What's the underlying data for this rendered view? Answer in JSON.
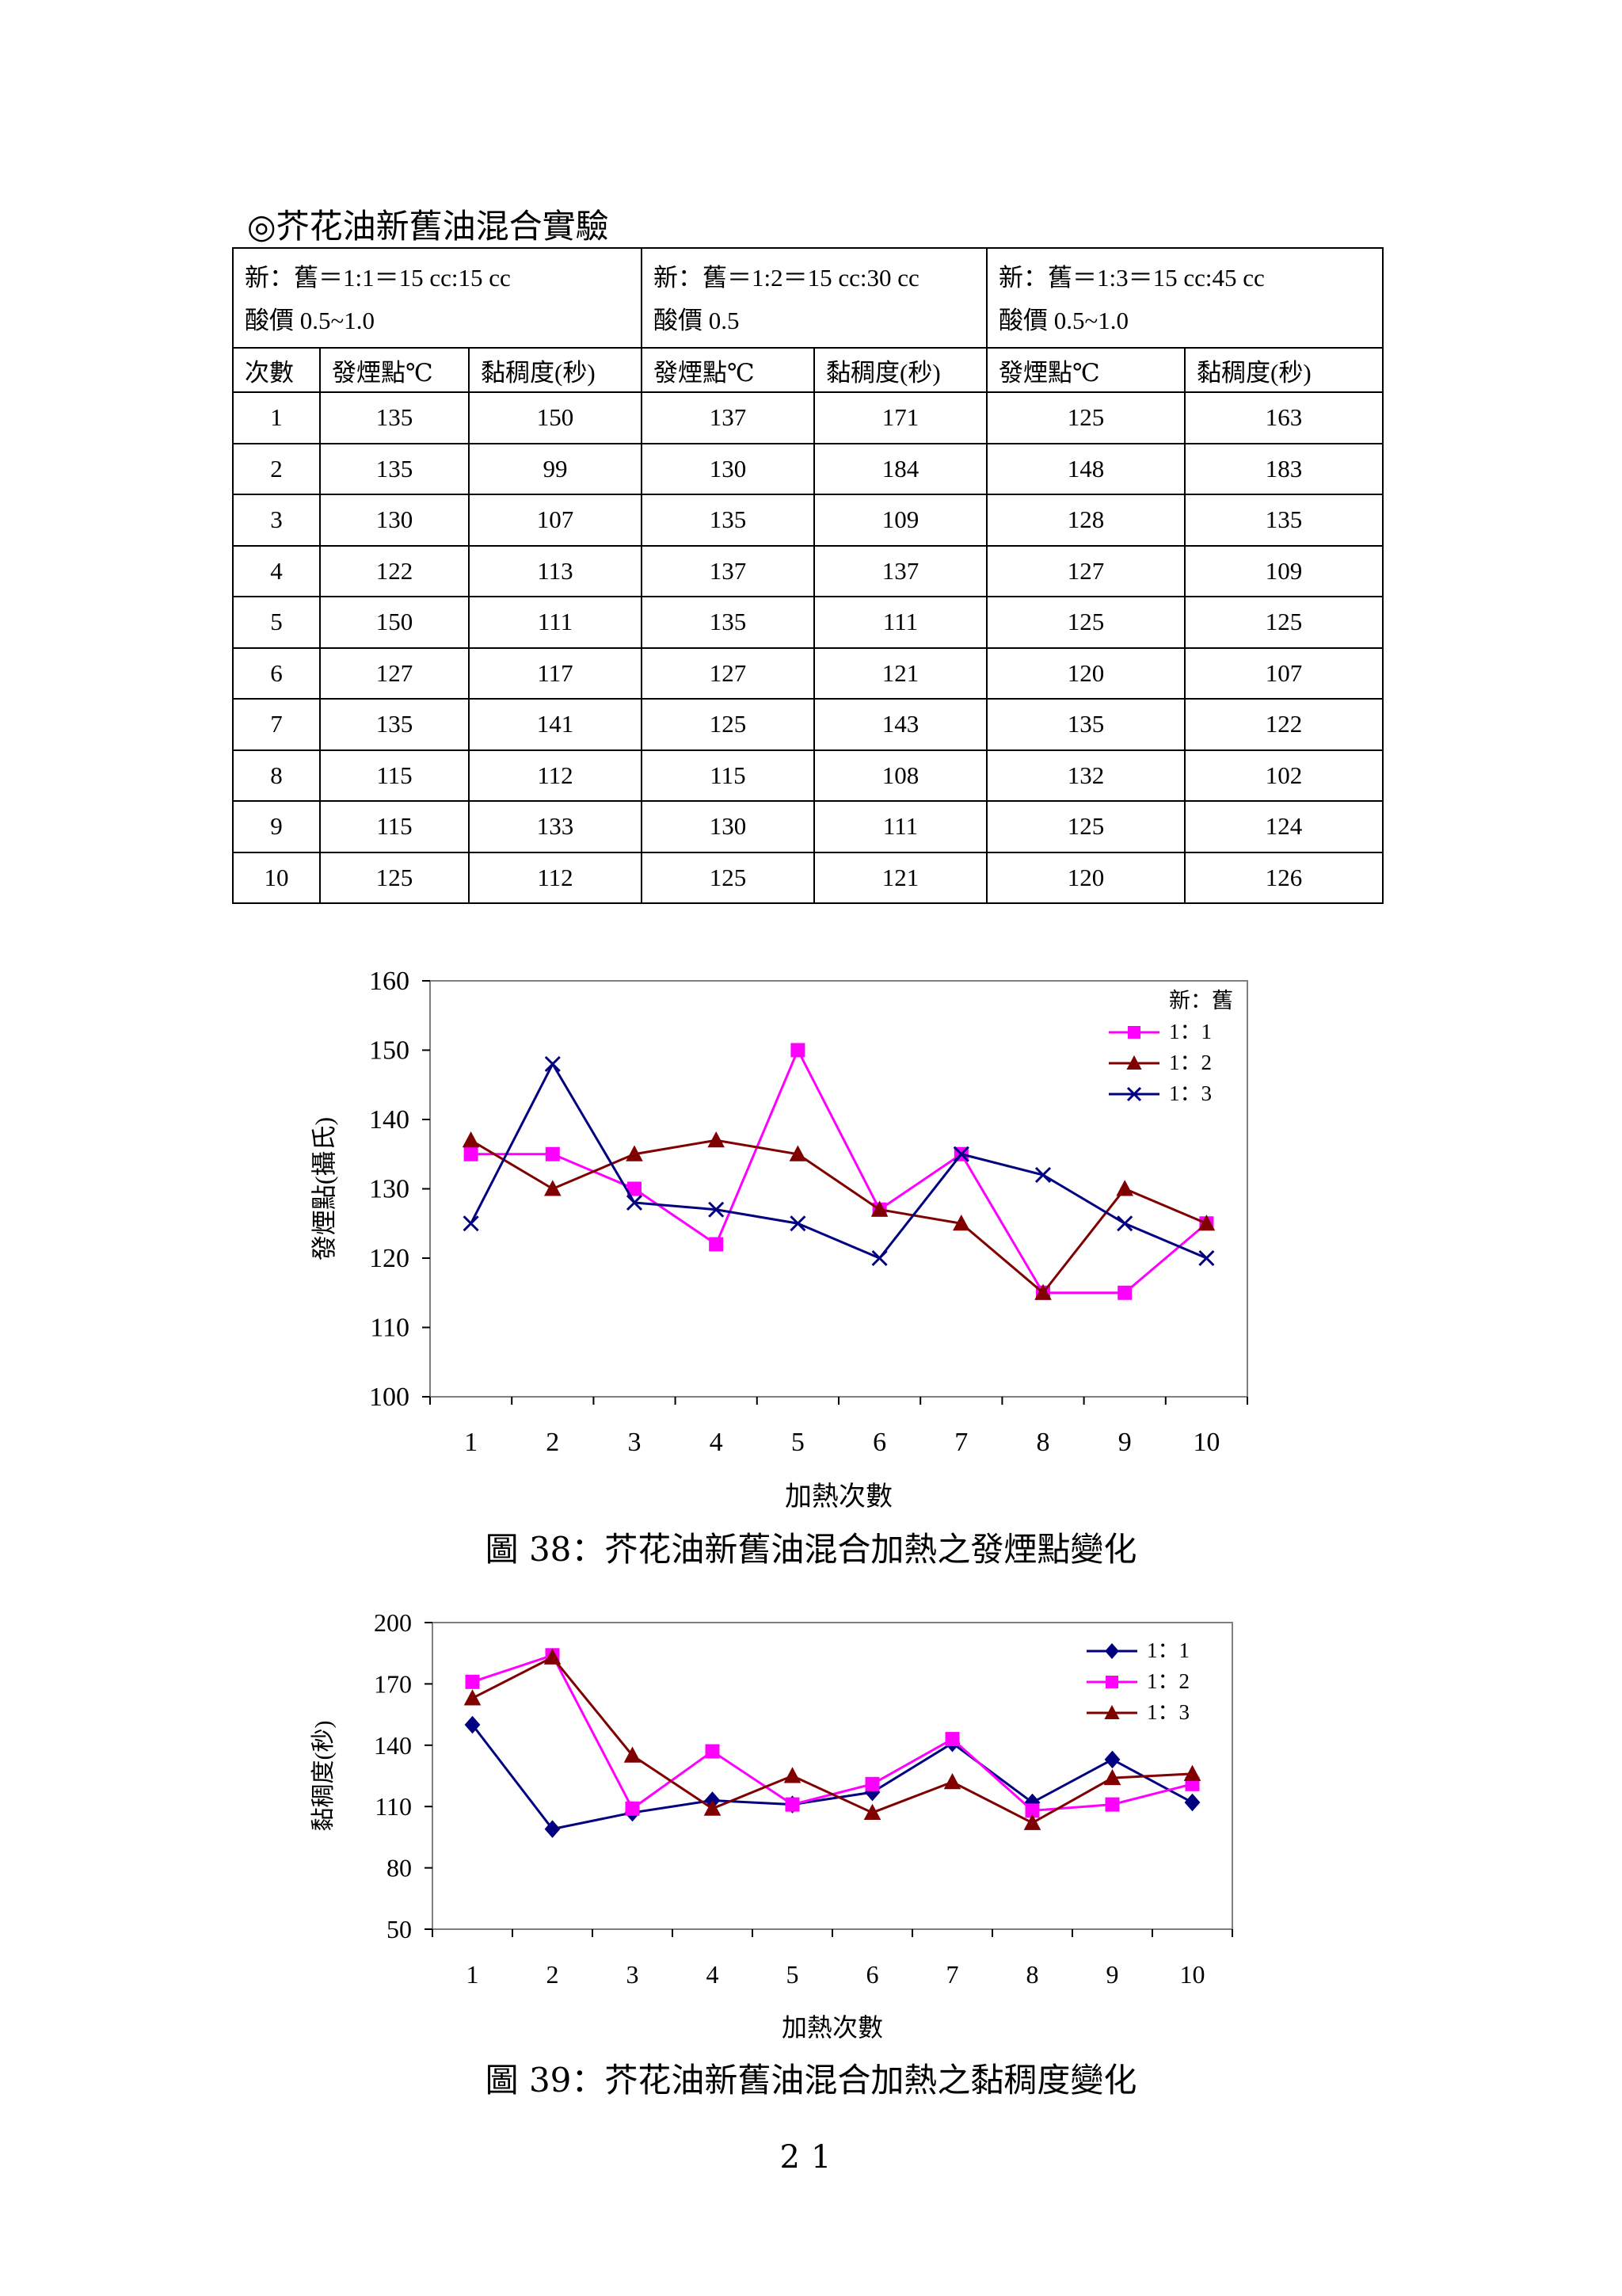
{
  "section_title": "◎芥花油新舊油混合實驗",
  "table": {
    "groups": [
      {
        "ratio": "新：舊＝1:1＝15 cc:15 cc",
        "acid": "酸價 0.5~1.0"
      },
      {
        "ratio": "新：舊＝1:2＝15 cc:30 cc",
        "acid": "酸價 0.5"
      },
      {
        "ratio": "新：舊＝1:3＝15 cc:45 cc",
        "acid": "酸價 0.5~1.0"
      }
    ],
    "headers": [
      "次數",
      "發煙點℃",
      "黏稠度(秒)",
      "發煙點℃",
      "黏稠度(秒)",
      "發煙點℃",
      "黏稠度(秒)"
    ],
    "rows": [
      [
        "1",
        "135",
        "150",
        "137",
        "171",
        "125",
        "163"
      ],
      [
        "2",
        "135",
        "99",
        "130",
        "184",
        "148",
        "183"
      ],
      [
        "3",
        "130",
        "107",
        "135",
        "109",
        "128",
        "135"
      ],
      [
        "4",
        "122",
        "113",
        "137",
        "137",
        "127",
        "109"
      ],
      [
        "5",
        "150",
        "111",
        "135",
        "111",
        "125",
        "125"
      ],
      [
        "6",
        "127",
        "117",
        "127",
        "121",
        "120",
        "107"
      ],
      [
        "7",
        "135",
        "141",
        "125",
        "143",
        "135",
        "122"
      ],
      [
        "8",
        "115",
        "112",
        "115",
        "108",
        "132",
        "102"
      ],
      [
        "9",
        "115",
        "133",
        "130",
        "111",
        "125",
        "124"
      ],
      [
        "10",
        "125",
        "112",
        "125",
        "121",
        "120",
        "126"
      ]
    ]
  },
  "chart_data": [
    {
      "type": "line",
      "title": "",
      "xlabel": "加熱次數",
      "ylabel": "發煙點(攝氏)",
      "x": [
        1,
        2,
        3,
        4,
        5,
        6,
        7,
        8,
        9,
        10
      ],
      "ylim": [
        100,
        160
      ],
      "yticks": [
        100,
        110,
        120,
        130,
        140,
        150,
        160
      ],
      "legend_title": "新：舊",
      "legend_position": "top-right",
      "series": [
        {
          "name": "1：1",
          "color": "#ff00ff",
          "marker": "square",
          "values": [
            135,
            135,
            130,
            122,
            150,
            127,
            135,
            115,
            115,
            125
          ]
        },
        {
          "name": "1：2",
          "color": "#800000",
          "marker": "triangle",
          "values": [
            137,
            130,
            135,
            137,
            135,
            127,
            125,
            115,
            130,
            125
          ]
        },
        {
          "name": "1：3",
          "color": "#000080",
          "marker": "x",
          "values": [
            125,
            148,
            128,
            127,
            125,
            120,
            135,
            132,
            125,
            120
          ]
        }
      ]
    },
    {
      "type": "line",
      "title": "",
      "xlabel": "加熱次數",
      "ylabel": "黏稠度(秒)",
      "x": [
        1,
        2,
        3,
        4,
        5,
        6,
        7,
        8,
        9,
        10
      ],
      "ylim": [
        50,
        200
      ],
      "yticks": [
        50,
        80,
        110,
        140,
        170,
        200
      ],
      "legend_position": "top-right",
      "series": [
        {
          "name": "1：1",
          "color": "#000080",
          "marker": "diamond",
          "values": [
            150,
            99,
            107,
            113,
            111,
            117,
            141,
            112,
            133,
            112
          ]
        },
        {
          "name": "1：2",
          "color": "#ff00ff",
          "marker": "square",
          "values": [
            171,
            184,
            109,
            137,
            111,
            121,
            143,
            108,
            111,
            121
          ]
        },
        {
          "name": "1：3",
          "color": "#800000",
          "marker": "triangle",
          "values": [
            163,
            183,
            135,
            109,
            125,
            107,
            122,
            102,
            124,
            126
          ]
        }
      ]
    }
  ],
  "captions": {
    "fig38": "圖 38：芥花油新舊油混合加熱之發煙點變化",
    "fig39": "圖 39：芥花油新舊油混合加熱之黏稠度變化"
  },
  "page_number": "21"
}
